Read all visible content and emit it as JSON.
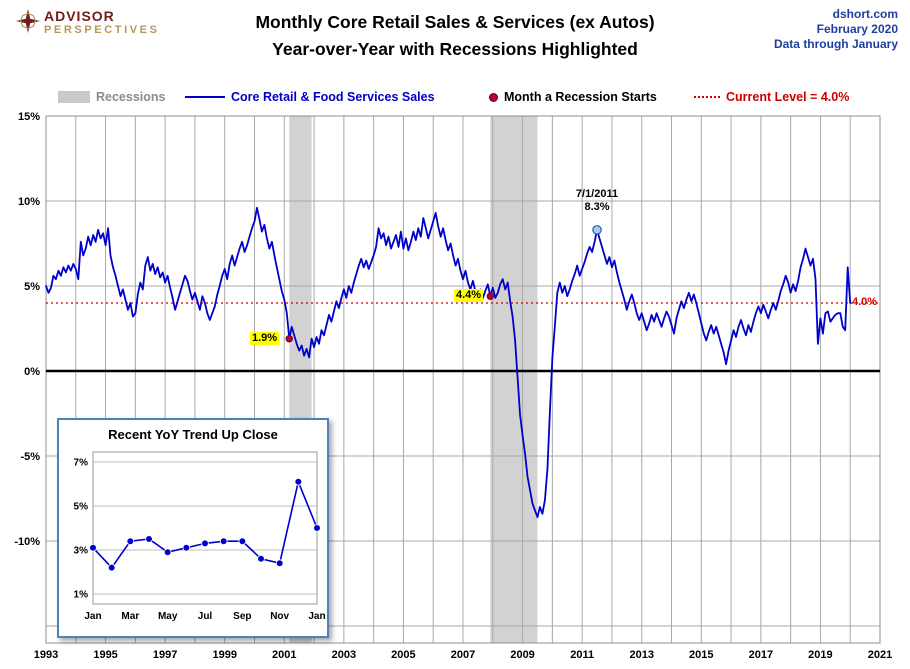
{
  "header": {
    "logo_line1": "ADVISOR",
    "logo_line2": "PERSPECTIVES",
    "title_line1": "Monthly Core Retail Sales & Services (ex Autos)",
    "title_line2": "Year-over-Year with Recessions Highlighted",
    "source": "dshort.com",
    "date": "February 2020",
    "data_through": "Data through January"
  },
  "legend": {
    "recessions": "Recessions",
    "series": "Core Retail & Food Services Sales",
    "recession_start": "Month a Recession Starts",
    "current_level": "Current Level = 4.0%"
  },
  "colors": {
    "series": "#0000cc",
    "red": "#cc0000",
    "recession_band": "#d2d2d2",
    "gridline": "#a8a8a8",
    "marker_fill": "#b5003c",
    "marker_edge": "#6d0024",
    "peak_fill": "#aac9ef",
    "peak_edge": "#2255bb"
  },
  "chart_data": {
    "type": "line",
    "title": "Monthly Core Retail Sales & Services (ex Autos) Year-over-Year with Recessions Highlighted",
    "xlabel": "Year",
    "ylabel": "Year-over-Year % Change",
    "xlim": [
      1993,
      2021
    ],
    "ylim": [
      -16,
      15
    ],
    "x_start": "1993-01",
    "x_step_months": 1,
    "grid": true,
    "current_level": 4.0,
    "y_gridlines": [
      15,
      10,
      5,
      -5,
      -10,
      -15
    ],
    "y_ticks": [
      {
        "value": 15,
        "label": "15%"
      },
      {
        "value": 10,
        "label": "10%"
      },
      {
        "value": 5,
        "label": "5%"
      },
      {
        "value": 0,
        "label": "0%"
      },
      {
        "value": -5,
        "label": "-5%"
      },
      {
        "value": -10,
        "label": "-10%"
      }
    ],
    "x_ticks": [
      {
        "value": 1993,
        "label": "1993"
      },
      {
        "value": 1995,
        "label": "1995"
      },
      {
        "value": 1997,
        "label": "1997"
      },
      {
        "value": 1999,
        "label": "1999"
      },
      {
        "value": 2001,
        "label": "2001"
      },
      {
        "value": 2003,
        "label": "2003"
      },
      {
        "value": 2005,
        "label": "2005"
      },
      {
        "value": 2007,
        "label": "2007"
      },
      {
        "value": 2009,
        "label": "2009"
      },
      {
        "value": 2011,
        "label": "2011"
      },
      {
        "value": 2013,
        "label": "2013"
      },
      {
        "value": 2015,
        "label": "2015"
      },
      {
        "value": 2017,
        "label": "2017"
      },
      {
        "value": 2019,
        "label": "2019"
      },
      {
        "value": 2021,
        "label": "2021"
      }
    ],
    "recessions": [
      {
        "start": 2001.167,
        "end": 2001.917
      },
      {
        "start": 2007.917,
        "end": 2009.5
      }
    ],
    "recession_start_markers": [
      {
        "date": "2001-03",
        "t": 2001.167,
        "value": 1.9
      },
      {
        "date": "2007-12",
        "t": 2007.917,
        "value": 4.4
      }
    ],
    "peak_marker": {
      "date": "7/1/2011",
      "t": 2011.5,
      "value": 8.3
    },
    "annotations": {
      "pre2001": "1.9%",
      "pre2008": "4.4%",
      "peak_date": "7/1/2011",
      "peak_value": "8.3%",
      "current": "4.0%"
    },
    "values": [
      5.0,
      4.6,
      4.9,
      5.6,
      5.4,
      5.9,
      5.6,
      6.1,
      5.8,
      6.2,
      5.9,
      6.3,
      6.0,
      5.4,
      7.6,
      6.8,
      7.2,
      7.9,
      7.4,
      8.0,
      7.6,
      8.3,
      7.8,
      8.1,
      7.4,
      8.4,
      6.8,
      6.1,
      5.6,
      5.0,
      4.4,
      4.8,
      4.2,
      3.6,
      4.0,
      3.2,
      3.4,
      4.5,
      5.2,
      4.8,
      6.2,
      6.7,
      5.9,
      6.3,
      5.7,
      6.1,
      5.5,
      5.8,
      5.2,
      5.6,
      4.9,
      4.3,
      3.6,
      4.1,
      4.6,
      5.1,
      5.6,
      5.3,
      4.7,
      4.2,
      4.6,
      4.1,
      3.6,
      4.4,
      4.0,
      3.4,
      3.0,
      3.4,
      3.8,
      4.5,
      5.0,
      5.6,
      6.0,
      5.4,
      6.3,
      6.8,
      6.2,
      6.7,
      7.2,
      7.6,
      7.0,
      7.4,
      7.9,
      8.4,
      8.8,
      9.6,
      8.9,
      8.2,
      8.6,
      7.8,
      7.2,
      7.6,
      6.8,
      6.1,
      5.4,
      4.7,
      4.2,
      3.4,
      1.9,
      2.6,
      2.1,
      1.6,
      1.2,
      1.5,
      0.9,
      1.3,
      0.8,
      1.9,
      1.4,
      2.0,
      1.6,
      2.4,
      2.1,
      2.7,
      3.3,
      2.9,
      3.5,
      4.1,
      3.7,
      4.3,
      4.8,
      4.3,
      5.0,
      4.6,
      5.2,
      5.7,
      6.2,
      6.6,
      6.1,
      6.5,
      6.0,
      6.4,
      6.8,
      7.3,
      8.4,
      7.8,
      8.1,
      7.4,
      7.9,
      7.2,
      7.6,
      8.0,
      7.3,
      8.2,
      7.2,
      7.8,
      7.1,
      7.6,
      8.2,
      7.7,
      8.4,
      7.9,
      9.0,
      8.4,
      7.8,
      8.3,
      8.8,
      9.3,
      8.5,
      7.9,
      8.4,
      7.7,
      7.1,
      7.5,
      6.8,
      6.2,
      6.6,
      5.9,
      5.4,
      5.9,
      5.2,
      4.8,
      5.3,
      4.7,
      4.4,
      4.8,
      4.3,
      4.7,
      5.1,
      4.4,
      4.9,
      4.3,
      4.6,
      5.1,
      5.4,
      4.8,
      5.2,
      4.1,
      3.2,
      1.8,
      -0.4,
      -2.6,
      -3.8,
      -4.9,
      -6.2,
      -7.0,
      -7.8,
      -8.2,
      -8.6,
      -8.0,
      -8.4,
      -7.6,
      -5.8,
      -2.4,
      0.8,
      2.6,
      4.6,
      5.2,
      4.6,
      5.0,
      4.4,
      4.8,
      5.3,
      5.7,
      6.2,
      5.6,
      6.0,
      6.4,
      6.9,
      7.3,
      7.0,
      7.6,
      8.3,
      7.8,
      7.3,
      6.8,
      6.3,
      6.7,
      6.1,
      6.5,
      5.8,
      5.2,
      4.7,
      4.2,
      3.6,
      4.1,
      4.5,
      4.0,
      3.4,
      3.0,
      3.4,
      2.9,
      2.4,
      2.8,
      3.3,
      2.9,
      3.4,
      3.0,
      2.6,
      3.1,
      3.5,
      3.2,
      2.7,
      2.2,
      3.1,
      3.6,
      4.1,
      3.7,
      4.2,
      4.6,
      4.1,
      4.5,
      4.0,
      3.4,
      2.8,
      2.2,
      1.8,
      2.3,
      2.7,
      2.2,
      2.6,
      2.1,
      1.6,
      1.1,
      0.4,
      1.2,
      1.8,
      2.4,
      2.0,
      2.6,
      3.0,
      2.5,
      2.1,
      2.7,
      2.3,
      2.9,
      3.4,
      3.8,
      3.4,
      3.9,
      3.5,
      3.1,
      3.6,
      4.0,
      3.6,
      4.1,
      4.7,
      5.1,
      5.6,
      5.2,
      4.6,
      5.1,
      4.7,
      5.3,
      6.1,
      6.6,
      7.2,
      6.7,
      6.2,
      6.6,
      5.4,
      1.6,
      3.1,
      2.2,
      3.4,
      3.5,
      2.9,
      3.1,
      3.3,
      3.4,
      3.4,
      2.6,
      2.4,
      6.1,
      4.0
    ],
    "inset": {
      "type": "line",
      "title": "Recent YoY Trend Up Close",
      "x_labels": [
        "Jan",
        "Mar",
        "May",
        "Jul",
        "Sep",
        "Nov",
        "Jan"
      ],
      "y_ticks": [
        1,
        3,
        5,
        7
      ],
      "ylim": [
        0,
        8
      ],
      "values": [
        3.1,
        2.2,
        3.4,
        3.5,
        2.9,
        3.1,
        3.3,
        3.4,
        3.4,
        2.6,
        2.4,
        6.1,
        4.0
      ]
    }
  }
}
